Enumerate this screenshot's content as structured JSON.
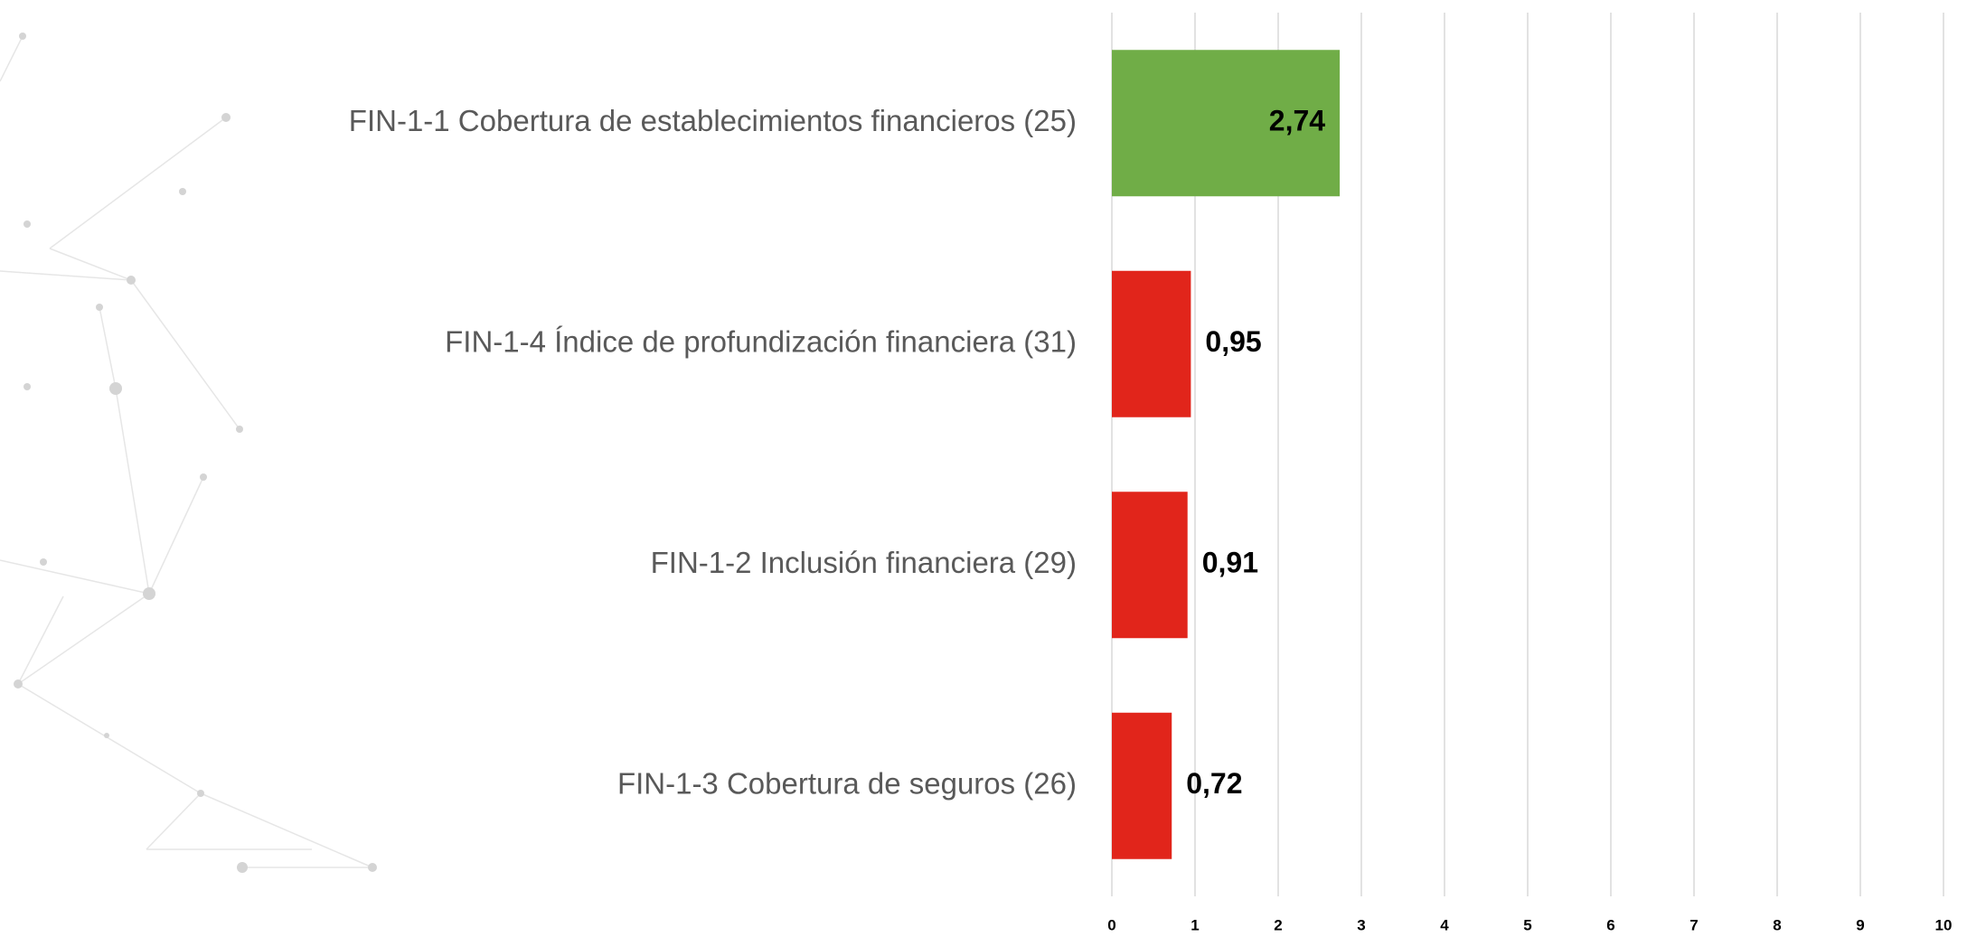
{
  "chart_data": {
    "type": "bar",
    "orientation": "horizontal",
    "categories": [
      "FIN-1-1 Cobertura de establecimientos financieros (25)",
      "FIN-1-4 Índice de profundización financiera (31)",
      "FIN-1-2 Inclusión financiera (29)",
      "FIN-1-3 Cobertura de seguros (26)"
    ],
    "values": [
      2.74,
      0.95,
      0.91,
      0.72
    ],
    "value_labels": [
      "2,74",
      "0,95",
      "0,91",
      "0,72"
    ],
    "colors": [
      "#70ad47",
      "#e1251b",
      "#e1251b",
      "#e1251b"
    ],
    "xlim": [
      0,
      10
    ],
    "xticks": [
      0,
      1,
      2,
      3,
      4,
      5,
      6,
      7,
      8,
      9,
      10
    ],
    "grid": true
  }
}
